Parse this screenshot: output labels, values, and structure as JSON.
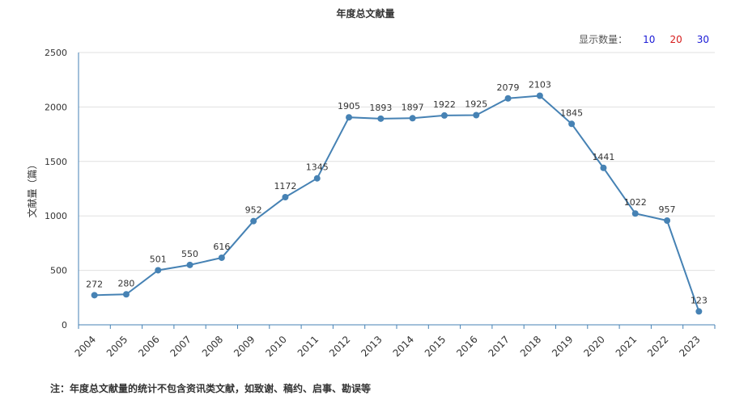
{
  "chart_title": "年度总文献量",
  "count_selector": {
    "label": "显示数量：",
    "options": [
      {
        "label": "10",
        "color": "#1a1ad6"
      },
      {
        "label": "20",
        "color": "#d61a1a"
      },
      {
        "label": "30",
        "color": "#1a1ad6"
      }
    ]
  },
  "note": "注：年度总文献量的统计不包含资讯类文献，如致谢、稿约、启事、勘误等",
  "chart_data": {
    "type": "line",
    "title": "年度总文献量",
    "xlabel": "",
    "ylabel": "文献量（篇）",
    "x": [
      "2004",
      "2005",
      "2006",
      "2007",
      "2008",
      "2009",
      "2010",
      "2011",
      "2012",
      "2013",
      "2014",
      "2015",
      "2016",
      "2017",
      "2018",
      "2019",
      "2020",
      "2021",
      "2022",
      "2023"
    ],
    "values": [
      272,
      280,
      501,
      550,
      616,
      952,
      1172,
      1345,
      1905,
      1893,
      1897,
      1922,
      1925,
      2079,
      2103,
      1845,
      1441,
      1022,
      957,
      123
    ],
    "ylim": [
      0,
      2500
    ],
    "yticks": [
      0,
      500,
      1000,
      1500,
      2000,
      2500
    ],
    "grid": true,
    "line_color": "#4682b4"
  }
}
